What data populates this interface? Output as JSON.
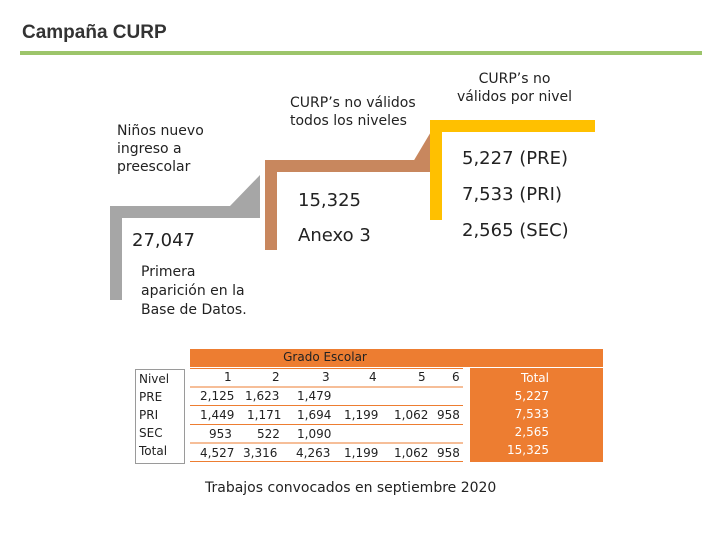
{
  "header": {
    "title": "Campaña CURP"
  },
  "diagram": {
    "new_entry": {
      "label": "Niños nuevo ingreso a preescolar",
      "value": "27,047",
      "note": "Primera aparición en la Base de Datos."
    },
    "invalid_all": {
      "label": "CURP’s no válidos todos los niveles",
      "value": "15,325",
      "sub": "Anexo 3"
    },
    "invalid_level": {
      "label": "CURP’s no válidos por nivel",
      "values": [
        "5,227 (PRE)",
        "7,533 (PRI)",
        "2,565 (SEC)"
      ]
    },
    "colors": {
      "gray": "#a6a6a6",
      "tan": "#c8875e",
      "yellow": "#ffc000",
      "orange": "#ed7d31",
      "rule": "#9dc56b"
    }
  },
  "table": {
    "group_header": "Grado Escolar",
    "row_label_header": "Nivel",
    "grade_headers": [
      "1",
      "2",
      "3",
      "4",
      "5",
      "6"
    ],
    "rows": [
      {
        "label": "PRE",
        "cells": [
          "2,125",
          "1,623",
          "1,479",
          "",
          "",
          ""
        ]
      },
      {
        "label": "PRI",
        "cells": [
          "1,449",
          "1,171",
          "1,694",
          "1,199",
          "1,062",
          "958"
        ]
      },
      {
        "label": "SEC",
        "cells": [
          "953",
          "522",
          "1,090",
          "",
          "",
          ""
        ]
      },
      {
        "label": "Total",
        "cells": [
          "4,527",
          "3,316",
          "4,263",
          "1,199",
          "1,062",
          "958"
        ]
      }
    ],
    "total_header": "Total",
    "totals": [
      "5,227",
      "7,533",
      "2,565",
      "15,325"
    ]
  },
  "footer": {
    "note": "Trabajos convocados en septiembre 2020"
  }
}
